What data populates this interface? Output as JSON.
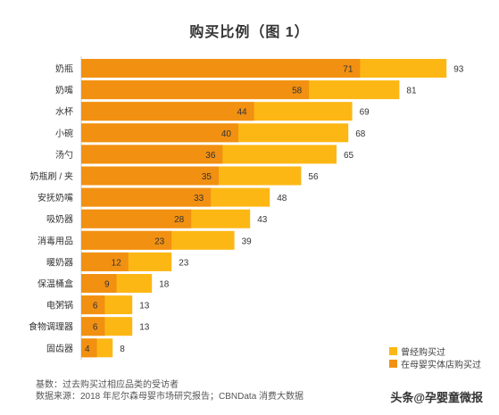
{
  "title": "购买比例（图 1）",
  "colors": {
    "ever": "#FDB714",
    "store": "#F29012"
  },
  "footnotes": {
    "base": "基数：过去购买过相应品类的受访者",
    "source": "数据来源：2018 年尼尔森母婴市场研究报告；CBNData 消费大数据"
  },
  "watermark": "头条@孕婴童微报",
  "chart_data": {
    "type": "bar",
    "orientation": "horizontal",
    "layout": "overlapped",
    "categories": [
      "奶瓶",
      "奶嘴",
      "水杯",
      "小碗",
      "汤勺",
      "奶瓶刷 / 夹",
      "安抚奶嘴",
      "吸奶器",
      "消毒用品",
      "暖奶器",
      "保温桶盒",
      "电粥锅",
      "食物调理器",
      "固齿器"
    ],
    "series": [
      {
        "name": "曾经购买过",
        "color": "#FDB714",
        "values": [
          93,
          81,
          69,
          68,
          65,
          56,
          48,
          43,
          39,
          23,
          18,
          13,
          13,
          8
        ]
      },
      {
        "name": "在母婴实体店购买过",
        "color": "#F29012",
        "values": [
          71,
          58,
          44,
          40,
          36,
          35,
          33,
          28,
          23,
          12,
          9,
          6,
          6,
          4
        ]
      }
    ],
    "xlim": [
      0,
      100
    ],
    "legend_position": "bottom-right"
  }
}
